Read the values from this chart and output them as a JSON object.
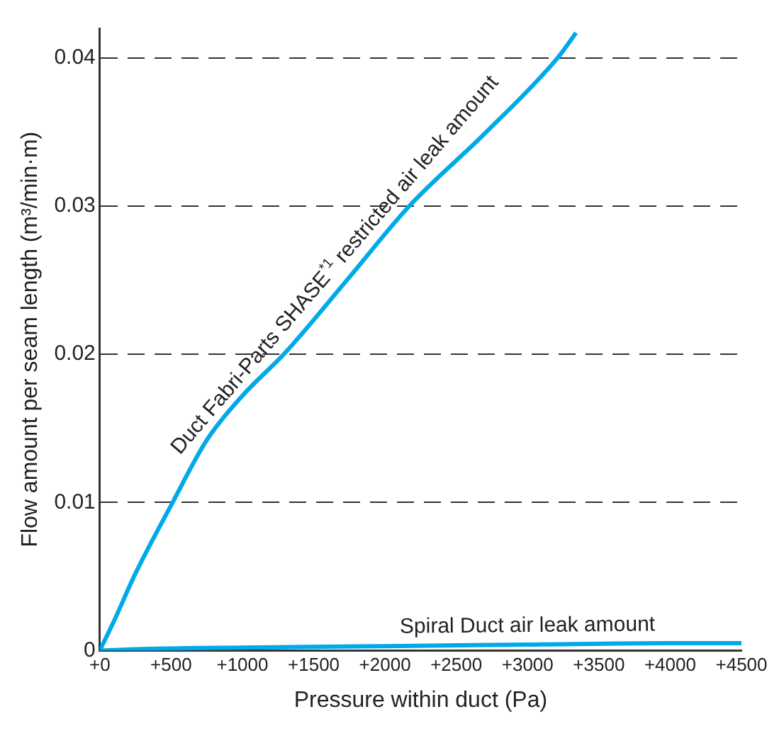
{
  "chart_data": {
    "type": "line",
    "xlabel": "Pressure within duct (Pa)",
    "ylabel": "Flow amount per seam length (m³/min·m)",
    "xlim": [
      0,
      4500
    ],
    "xticks": [
      {
        "value": 0,
        "label": "+0"
      },
      {
        "value": 500,
        "label": "+500"
      },
      {
        "value": 1000,
        "label": "+1000"
      },
      {
        "value": 1500,
        "label": "+1500"
      },
      {
        "value": 2000,
        "label": "+2000"
      },
      {
        "value": 2500,
        "label": "+2500"
      },
      {
        "value": 3000,
        "label": "+3000"
      },
      {
        "value": 3500,
        "label": "+3500"
      },
      {
        "value": 4000,
        "label": "+4000"
      },
      {
        "value": 4500,
        "label": "+4500"
      }
    ],
    "ylim": [
      0,
      0.042
    ],
    "yticks": [
      0,
      0.01,
      0.02,
      0.03,
      0.04
    ],
    "grid": "y",
    "legend": false,
    "marker": "none",
    "series": [
      {
        "name": "Duct Fabri-Parts SHASE$^{*1}$ restricted air leak amount",
        "color": "#00a9e8",
        "x": [
          0,
          100,
          250,
          500,
          750,
          1000,
          1300,
          1750,
          2170,
          2700,
          3210,
          3340
        ],
        "values": [
          0,
          0.002,
          0.0052,
          0.0098,
          0.0142,
          0.0172,
          0.0201,
          0.0252,
          0.03,
          0.0349,
          0.04,
          0.0417
        ]
      },
      {
        "name": "Spiral Duct air leak amount",
        "color": "#00a9e8",
        "x": [
          0,
          300,
          1000,
          2000,
          3000,
          4000,
          4500
        ],
        "values": [
          0,
          0.0001,
          0.0002,
          0.0003,
          0.0004,
          0.0005,
          0.0005
        ]
      }
    ]
  }
}
